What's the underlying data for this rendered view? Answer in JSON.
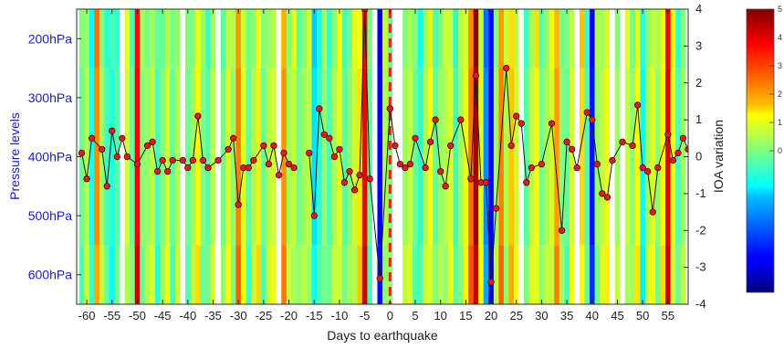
{
  "chart_data": {
    "type": "heatmap",
    "xlabel": "Days to earthquake",
    "ylabel_left": "Pressure levels",
    "ylabel_right": "IOA variation",
    "x_ticks": [
      -60,
      -55,
      -50,
      -45,
      -40,
      -35,
      -30,
      -25,
      -20,
      -15,
      -10,
      -5,
      0,
      5,
      10,
      15,
      20,
      25,
      30,
      35,
      40,
      45,
      50,
      55
    ],
    "x_tick_labels": [
      "-60",
      "-55",
      "-50",
      "-45",
      "-40",
      "-35",
      "-30",
      "-25",
      "-20",
      "-15",
      "-10",
      "-5",
      "0",
      "5",
      "10",
      "15",
      "20",
      "25",
      "30",
      "35",
      "40",
      "45",
      "50",
      "55"
    ],
    "xlim": [
      -62,
      59
    ],
    "pressure_ticks": [
      200,
      300,
      400,
      500,
      600
    ],
    "pressure_tick_labels": [
      "200hPa",
      "300hPa",
      "400hPa",
      "500hPa",
      "600hPa"
    ],
    "pressure_range": [
      150,
      650
    ],
    "right_ylim": [
      -4,
      4
    ],
    "right_ticks": [
      4,
      3,
      2,
      1,
      0,
      -1,
      -2,
      -3,
      -4
    ],
    "right_tick_labels": [
      "4",
      "3",
      "2",
      "1",
      "0",
      "-1",
      "-2",
      "-3",
      "-4"
    ],
    "earthquake_day": 0,
    "earthquake_line_color": "#e8201a",
    "colormap": "jet",
    "colorbar_ticks": [
      5,
      4,
      3,
      2,
      1,
      0
    ],
    "colorbar_tick_labels": [
      "5",
      "4",
      "3",
      "2",
      "1",
      "0"
    ],
    "colorbar_range": [
      -5,
      5
    ],
    "heatmap_days": [
      -61,
      -60,
      -59,
      -58,
      -57,
      -56,
      -55,
      -54,
      -53,
      -52,
      -51,
      -50,
      -49,
      -48,
      -47,
      -46,
      -45,
      -44,
      -43,
      -42,
      -41,
      -40,
      -39,
      -38,
      -37,
      -36,
      -35,
      -34,
      -33,
      -32,
      -31,
      -30,
      -29,
      -28,
      -27,
      -26,
      -25,
      -24,
      -23,
      -22,
      -21,
      -20,
      -19,
      -18,
      -17,
      -16,
      -15,
      -14,
      -13,
      -12,
      -11,
      -10,
      -9,
      -8,
      -7,
      -6,
      -5,
      -4,
      -3,
      -2,
      -1,
      0,
      1,
      2,
      3,
      4,
      5,
      6,
      7,
      8,
      9,
      10,
      11,
      12,
      13,
      14,
      15,
      16,
      17,
      18,
      19,
      20,
      21,
      22,
      23,
      24,
      25,
      26,
      27,
      28,
      29,
      30,
      31,
      32,
      33,
      34,
      35,
      36,
      37,
      38,
      39,
      40,
      41,
      42,
      43,
      44,
      45,
      46,
      47,
      48,
      49,
      50,
      51,
      52,
      53,
      54,
      55,
      56,
      57,
      58
    ],
    "heatmap_values": [
      -0.2,
      0.5,
      -1.0,
      2.4,
      0.3,
      -0.6,
      -0.9,
      -0.4,
      0.4,
      0.8,
      -0.3,
      3.9,
      0.1,
      0.2,
      0.6,
      -0.5,
      0.0,
      0.7,
      -0.3,
      0.4,
      0.9,
      -0.2,
      0.3,
      1.3,
      0.0,
      -0.4,
      0.6,
      0.3,
      -0.1,
      0.9,
      0.2,
      2.5,
      1.0,
      -0.3,
      0.4,
      1.4,
      -0.2,
      0.5,
      0.8,
      -0.5,
      2.3,
      0.4,
      0.7,
      -0.1,
      0.3,
      0.6,
      -1.5,
      -0.8,
      0.2,
      -0.5,
      0.4,
      1.0,
      -0.4,
      0.1,
      0.8,
      1.5,
      3.9,
      -0.3,
      -1.7,
      -3.9,
      0.5,
      0.0,
      1.2,
      -0.5,
      0.3,
      0.7,
      -0.2,
      -0.8,
      0.4,
      1.2,
      -0.3,
      0.2,
      0.5,
      0.9,
      -0.6,
      0.3,
      1.1,
      2.6,
      4.6,
      0.9,
      -2.4,
      -3.9,
      0.3,
      2.5,
      0.5,
      1.8,
      0.8,
      0.2,
      -0.4,
      0.6,
      1.3,
      -0.2,
      0.4,
      0.9,
      2.2,
      0.1,
      -0.3,
      0.8,
      0.5,
      1.6,
      -0.5,
      -3.6,
      0.2,
      0.6,
      1.1,
      -0.4,
      0.3,
      2.6,
      0.7,
      0.1,
      1.2,
      -1.1,
      0.4,
      0.9,
      0.2,
      1.3,
      4.0,
      1.1,
      -0.5,
      0.3
    ],
    "white_days": [
      -53,
      -41,
      -34,
      -22,
      -3,
      1,
      2,
      26,
      37,
      44,
      46
    ],
    "ioa_series": {
      "days": [
        -61,
        -60,
        -59,
        -57,
        -56,
        -55,
        -54,
        -53,
        -52,
        -50,
        -48,
        -47,
        -46,
        -45,
        -44,
        -43,
        -41,
        -40,
        -39,
        -38,
        -37,
        -36,
        -34,
        -32,
        -31,
        -30,
        -29,
        -28,
        -27,
        -25,
        -24,
        -23,
        -22,
        -21,
        -20,
        -19,
        -16,
        -15,
        -14,
        -13,
        -12,
        -11,
        -10,
        -9,
        -8,
        -7,
        -6,
        -5,
        -4,
        -2,
        0,
        1,
        2,
        3,
        4,
        5,
        7,
        8,
        9,
        10,
        11,
        12,
        14,
        16,
        17,
        18,
        19,
        20,
        21,
        23,
        24,
        25,
        26,
        27,
        28,
        30,
        32,
        34,
        35,
        36,
        37,
        39,
        40,
        41,
        42,
        43,
        44,
        46,
        48,
        49,
        50,
        51,
        52,
        53,
        55,
        56,
        57,
        58,
        59
      ],
      "values": [
        0.1,
        -0.6,
        0.5,
        0.2,
        -0.8,
        0.7,
        0.0,
        0.5,
        0.0,
        -0.2,
        0.3,
        0.4,
        -0.4,
        -0.1,
        -0.4,
        -0.1,
        -0.1,
        -0.3,
        -0.1,
        1.1,
        -0.1,
        -0.3,
        -0.1,
        0.2,
        0.5,
        -1.3,
        -0.3,
        -0.3,
        -0.1,
        0.3,
        -0.2,
        0.3,
        -0.5,
        0.1,
        -0.2,
        -0.3,
        0.1,
        -1.6,
        1.3,
        0.6,
        0.5,
        0.0,
        0.2,
        -0.7,
        -0.4,
        -0.9,
        -0.5,
        4.0,
        -0.6,
        -3.3,
        1.3,
        0.3,
        -0.2,
        -0.3,
        -0.2,
        0.5,
        -0.3,
        0.4,
        1.0,
        -0.4,
        -0.8,
        0.3,
        1.0,
        -0.6,
        2.2,
        -0.7,
        -0.7,
        -3.4,
        -1.4,
        2.4,
        0.3,
        1.1,
        0.9,
        -0.7,
        -0.3,
        -0.2,
        0.9,
        -2.0,
        0.4,
        0.2,
        -0.3,
        1.2,
        1.0,
        -0.2,
        -1.0,
        -1.1,
        -0.1,
        0.4,
        0.3,
        1.4,
        -0.3,
        -0.4,
        -1.5,
        -0.3,
        0.6,
        -0.1,
        0.1,
        0.5,
        0.2
      ],
      "line_color": "#1a1a1a",
      "marker_color": "#d42020",
      "marker_edge_color": "#5a0a0a"
    }
  }
}
